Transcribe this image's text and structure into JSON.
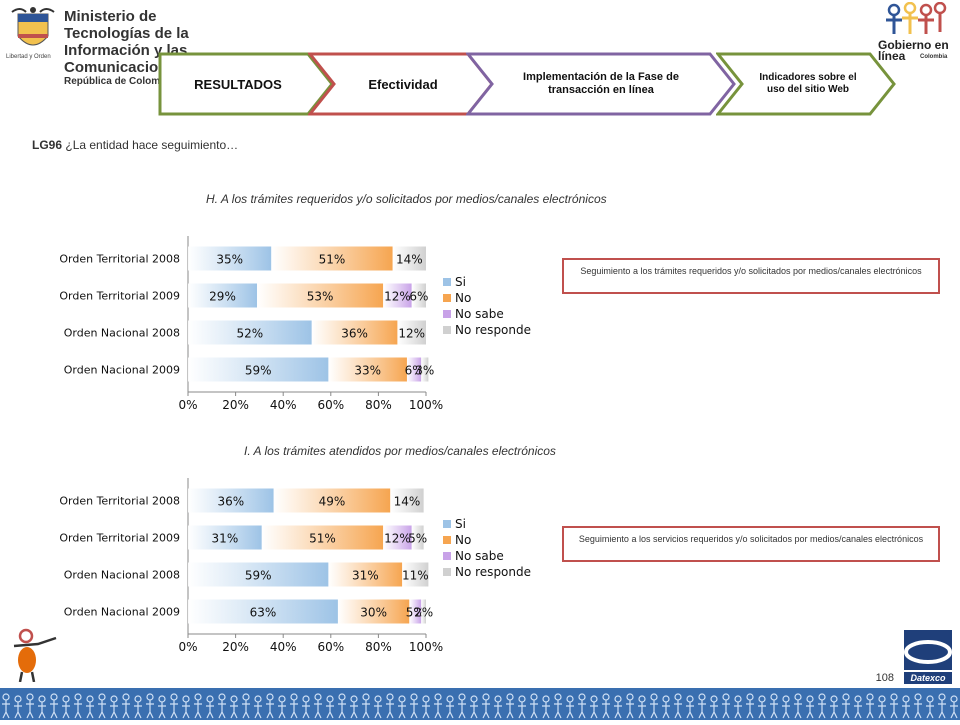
{
  "header": {
    "ministry_lines": [
      "Ministerio de Tecnologías de la",
      "Información y las Comunicaciones"
    ],
    "ministry_sub": "República de Colombia",
    "motto": "Libertad y Orden",
    "gel_lines": [
      "Gobierno en línea"
    ],
    "gel_country": "Colombia"
  },
  "process": {
    "steps": [
      {
        "label": "RESULTADOS",
        "border": "#77933c"
      },
      {
        "label": "Efectividad",
        "border": "#c0504d"
      },
      {
        "label": "Implementación de la Fase de transacción en línea",
        "border": "#8064a2"
      },
      {
        "label": "Indicadores sobre el uso del sitio Web",
        "border": "#77933c"
      }
    ]
  },
  "question": {
    "code": "LG96",
    "text": "¿La entidad hace seguimiento…"
  },
  "notes": [
    "Seguimiento a los trámites requeridos y/o solicitados por medios/canales electrónicos",
    "Seguimiento a los servicios requeridos y/o solicitados por medios/canales electrónicos"
  ],
  "page_number": "108",
  "footer_brand": "Datexco",
  "chart_data": [
    {
      "type": "bar",
      "orientation": "horizontal",
      "stacked": true,
      "title": "H. A los trámites requeridos y/o solicitados por medios/canales  electrónicos",
      "categories": [
        "Orden Territorial 2008",
        "Orden Territorial 2009",
        "Orden Nacional 2008",
        "Orden Nacional 2009"
      ],
      "series": [
        {
          "name": "Si",
          "values": [
            35,
            29,
            52,
            59
          ],
          "labels": [
            "35%",
            "29%",
            "52%",
            "59%"
          ],
          "color": "#9dc3e6"
        },
        {
          "name": "No",
          "values": [
            51,
            53,
            36,
            33
          ],
          "labels": [
            "51%",
            "53%",
            "36%",
            "33%"
          ],
          "color": "#f6a550"
        },
        {
          "name": "No sabe",
          "values": [
            0,
            12,
            0,
            6
          ],
          "labels": [
            "",
            "12%",
            "",
            "6%"
          ],
          "color": "#c8a2e8"
        },
        {
          "name": "No responde",
          "values": [
            14,
            6,
            12,
            3
          ],
          "labels": [
            "14%",
            "6%",
            "12%",
            "3%"
          ],
          "color": "#d0d0d0"
        }
      ],
      "xticks": [
        "0%",
        "20%",
        "40%",
        "60%",
        "80%",
        "100%"
      ],
      "xlim": [
        0,
        100
      ],
      "legend": "right"
    },
    {
      "type": "bar",
      "orientation": "horizontal",
      "stacked": true,
      "title": "I.  A los trámites atendidos por medios/canales electrónicos",
      "categories": [
        "Orden Territorial 2008",
        "Orden Territorial 2009",
        "Orden Nacional 2008",
        "Orden Nacional 2009"
      ],
      "series": [
        {
          "name": "Si",
          "values": [
            36,
            31,
            59,
            63
          ],
          "labels": [
            "36%",
            "31%",
            "59%",
            "63%"
          ],
          "color": "#9dc3e6"
        },
        {
          "name": "No",
          "values": [
            49,
            51,
            31,
            30
          ],
          "labels": [
            "49%",
            "51%",
            "31%",
            "30%"
          ],
          "color": "#f6a550"
        },
        {
          "name": "No sabe",
          "values": [
            0,
            12,
            0,
            5
          ],
          "labels": [
            "",
            "12%",
            "",
            "5%"
          ],
          "color": "#c8a2e8"
        },
        {
          "name": "No responde",
          "values": [
            14,
            5,
            11,
            2
          ],
          "labels": [
            "14%",
            "5%",
            "11%",
            "2%"
          ],
          "color": "#d0d0d0"
        }
      ],
      "xticks": [
        "0%",
        "20%",
        "40%",
        "60%",
        "80%",
        "100%"
      ],
      "xlim": [
        0,
        100
      ],
      "legend": "right"
    }
  ]
}
